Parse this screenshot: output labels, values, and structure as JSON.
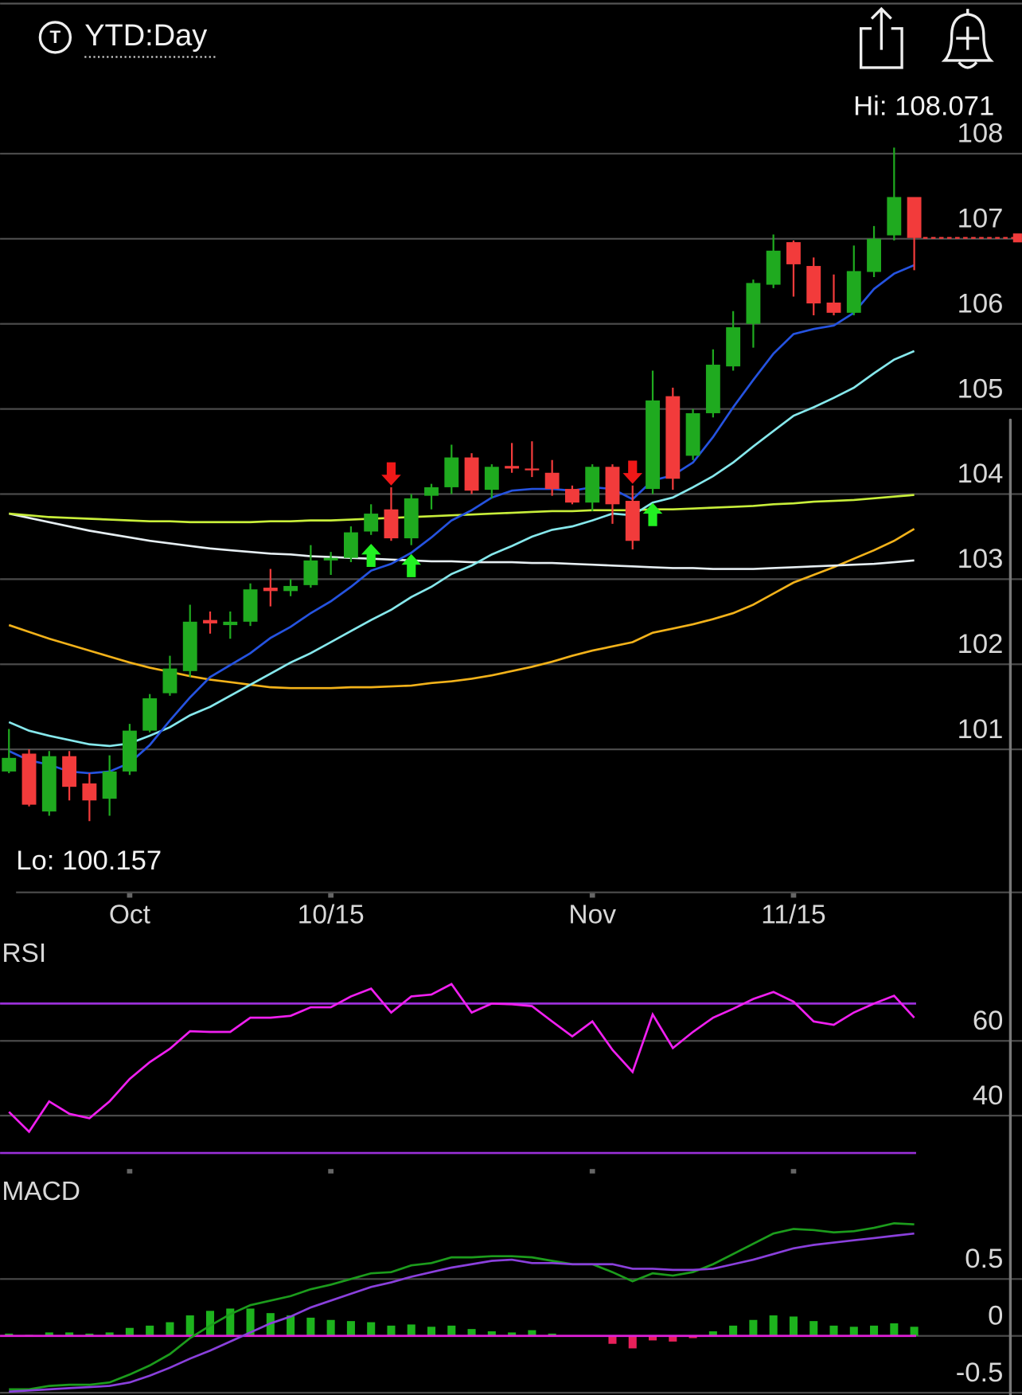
{
  "header": {
    "icon_letter": "T",
    "title": "YTD:Day"
  },
  "chart_data": [
    {
      "type": "candlestick",
      "categories": [
        null,
        null,
        null,
        null,
        null,
        null,
        "Oct",
        null,
        null,
        null,
        null,
        null,
        null,
        null,
        null,
        null,
        "10/15",
        null,
        null,
        null,
        null,
        null,
        null,
        null,
        null,
        null,
        null,
        null,
        null,
        "Nov",
        null,
        null,
        null,
        null,
        null,
        null,
        null,
        null,
        null,
        "11/15",
        null,
        null,
        null,
        null,
        null,
        null
      ],
      "open": [
        100.74,
        100.95,
        100.27,
        100.92,
        100.6,
        100.42,
        100.74,
        101.22,
        101.66,
        101.92,
        102.52,
        102.46,
        102.5,
        102.9,
        102.86,
        102.93,
        103.22,
        103.25,
        103.56,
        103.82,
        103.48,
        103.98,
        104.08,
        104.43,
        104.05,
        104.33,
        104.3,
        104.25,
        104.06,
        103.9,
        104.32,
        103.92,
        104.06,
        105.15,
        104.45,
        104.95,
        105.5,
        106.0,
        106.46,
        106.96,
        106.68,
        106.25,
        106.13,
        106.61,
        107.04,
        107.49
      ],
      "high": [
        101.24,
        101.0,
        100.98,
        100.98,
        100.72,
        100.93,
        101.3,
        101.65,
        102.1,
        102.7,
        102.62,
        102.62,
        102.95,
        103.12,
        103.0,
        103.4,
        103.32,
        103.62,
        103.88,
        104.08,
        104.0,
        104.12,
        104.58,
        104.48,
        104.35,
        104.6,
        104.62,
        104.4,
        104.1,
        104.35,
        104.35,
        104.1,
        105.45,
        105.25,
        105.0,
        105.7,
        106.15,
        106.52,
        107.05,
        106.98,
        106.78,
        106.58,
        106.92,
        107.15,
        108.071,
        107.49
      ],
      "low": [
        100.72,
        100.33,
        100.22,
        100.4,
        100.157,
        100.22,
        100.7,
        101.2,
        101.63,
        101.85,
        102.36,
        102.3,
        102.45,
        102.68,
        102.8,
        102.9,
        103.05,
        103.2,
        103.52,
        103.45,
        103.4,
        103.82,
        104.0,
        104.0,
        103.95,
        104.25,
        104.2,
        103.98,
        103.88,
        103.8,
        103.65,
        103.35,
        104.0,
        104.05,
        104.4,
        104.9,
        105.45,
        105.72,
        106.42,
        106.32,
        106.1,
        106.1,
        106.1,
        106.55,
        106.98,
        106.63
      ],
      "close": [
        100.9,
        100.35,
        100.92,
        100.56,
        100.4,
        100.74,
        101.22,
        101.6,
        101.95,
        102.5,
        102.48,
        102.5,
        102.88,
        102.86,
        102.92,
        103.22,
        103.25,
        103.55,
        103.77,
        103.48,
        103.95,
        104.08,
        104.43,
        104.04,
        104.32,
        104.3,
        104.28,
        104.06,
        103.9,
        104.32,
        103.88,
        103.45,
        105.1,
        104.18,
        104.95,
        105.52,
        105.96,
        106.48,
        106.86,
        106.7,
        106.24,
        106.13,
        106.62,
        107.0,
        107.49,
        107.01
      ],
      "up_color": "#1faa1f",
      "down_color": "#f23b3b",
      "series": [
        {
          "color": "#f2b21a",
          "values": [
            102.46,
            102.38,
            102.3,
            102.23,
            102.16,
            102.09,
            102.02,
            101.96,
            101.91,
            101.86,
            101.82,
            101.79,
            101.76,
            101.73,
            101.72,
            101.72,
            101.72,
            101.73,
            101.73,
            101.74,
            101.75,
            101.78,
            101.8,
            101.83,
            101.87,
            101.92,
            101.97,
            102.03,
            102.1,
            102.16,
            102.21,
            102.26,
            102.37,
            102.42,
            102.47,
            102.53,
            102.6,
            102.7,
            102.83,
            102.96,
            103.05,
            103.14,
            103.24,
            103.34,
            103.45,
            103.59
          ]
        },
        {
          "color": "#e6eef2",
          "values": [
            103.77,
            103.72,
            103.67,
            103.62,
            103.57,
            103.53,
            103.49,
            103.45,
            103.42,
            103.39,
            103.36,
            103.34,
            103.32,
            103.3,
            103.29,
            103.27,
            103.26,
            103.25,
            103.24,
            103.23,
            103.22,
            103.21,
            103.21,
            103.2,
            103.2,
            103.2,
            103.19,
            103.19,
            103.18,
            103.17,
            103.16,
            103.15,
            103.14,
            103.13,
            103.13,
            103.12,
            103.12,
            103.12,
            103.13,
            103.14,
            103.15,
            103.16,
            103.17,
            103.18,
            103.2,
            103.22
          ]
        },
        {
          "color": "#c8ee3a",
          "values": [
            103.77,
            103.75,
            103.73,
            103.72,
            103.71,
            103.7,
            103.69,
            103.68,
            103.68,
            103.67,
            103.67,
            103.67,
            103.67,
            103.68,
            103.68,
            103.69,
            103.69,
            103.7,
            103.71,
            103.72,
            103.73,
            103.74,
            103.75,
            103.76,
            103.77,
            103.78,
            103.79,
            103.8,
            103.8,
            103.81,
            103.81,
            103.81,
            103.82,
            103.82,
            103.83,
            103.84,
            103.85,
            103.86,
            103.88,
            103.89,
            103.91,
            103.92,
            103.93,
            103.95,
            103.97,
            103.99
          ]
        },
        {
          "color": "#86e8ec",
          "values": [
            101.32,
            101.22,
            101.16,
            101.11,
            101.06,
            101.04,
            101.07,
            101.16,
            101.26,
            101.4,
            101.5,
            101.63,
            101.76,
            101.89,
            102.02,
            102.13,
            102.26,
            102.39,
            102.52,
            102.64,
            102.79,
            102.91,
            103.06,
            103.16,
            103.29,
            103.39,
            103.5,
            103.58,
            103.62,
            103.69,
            103.77,
            103.75,
            103.9,
            103.96,
            104.08,
            104.21,
            104.37,
            104.56,
            104.74,
            104.92,
            105.02,
            105.13,
            105.25,
            105.42,
            105.58,
            105.68
          ]
        },
        {
          "color": "#2553e0",
          "values": [
            100.98,
            100.87,
            100.82,
            100.74,
            100.72,
            100.74,
            100.84,
            101.05,
            101.34,
            101.61,
            101.85,
            101.99,
            102.13,
            102.31,
            102.44,
            102.6,
            102.74,
            102.91,
            103.1,
            103.18,
            103.31,
            103.49,
            103.69,
            103.81,
            103.96,
            104.04,
            104.06,
            104.06,
            104.04,
            104.08,
            104.06,
            103.94,
            104.16,
            104.22,
            104.37,
            104.67,
            105.02,
            105.34,
            105.65,
            105.88,
            105.94,
            105.98,
            106.13,
            106.41,
            106.59,
            106.69
          ]
        }
      ],
      "up_signals": [
        18,
        20,
        32
      ],
      "down_signals": [
        19,
        31
      ],
      "hi_label": "Hi: 108.071",
      "lo_label": "Lo: 100.157",
      "ylim": [
        99.32,
        108.76
      ],
      "yticks": [
        101,
        102,
        103,
        104,
        105,
        106,
        107,
        108
      ],
      "grid": true
    },
    {
      "type": "line",
      "title": "RSI",
      "color": "#f01ff0",
      "values": [
        41.0,
        35.7,
        43.8,
        40.5,
        39.3,
        43.8,
        49.8,
        54.3,
        57.9,
        62.6,
        62.4,
        62.4,
        66.2,
        66.2,
        66.7,
        69.0,
        69.0,
        71.9,
        74.0,
        67.6,
        71.9,
        72.4,
        75.2,
        67.6,
        70.0,
        69.8,
        69.3,
        65.2,
        61.2,
        65.2,
        57.6,
        51.7,
        67.1,
        58.1,
        62.4,
        66.2,
        68.6,
        71.2,
        73.1,
        70.5,
        65.2,
        64.3,
        67.6,
        70.0,
        72.1,
        66.2
      ],
      "levels": [
        30,
        70
      ],
      "level_color": "#9a30d8",
      "ylim": [
        26.19,
        79.52
      ],
      "yticks": [
        40,
        60
      ],
      "grid": true
    },
    {
      "type": "macd",
      "title": "MACD",
      "series": [
        {
          "color": "#1c9c1c",
          "values": [
            -0.47,
            -0.47,
            -0.44,
            -0.43,
            -0.43,
            -0.41,
            -0.34,
            -0.26,
            -0.16,
            -0.02,
            0.09,
            0.19,
            0.27,
            0.31,
            0.35,
            0.41,
            0.45,
            0.5,
            0.55,
            0.56,
            0.62,
            0.64,
            0.69,
            0.69,
            0.7,
            0.7,
            0.69,
            0.66,
            0.63,
            0.63,
            0.56,
            0.48,
            0.55,
            0.53,
            0.56,
            0.63,
            0.72,
            0.81,
            0.9,
            0.94,
            0.93,
            0.91,
            0.92,
            0.95,
            0.99,
            0.98
          ]
        },
        {
          "color": "#8a40dc",
          "values": [
            -0.49,
            -0.48,
            -0.47,
            -0.46,
            -0.45,
            -0.44,
            -0.41,
            -0.35,
            -0.28,
            -0.2,
            -0.13,
            -0.05,
            0.03,
            0.11,
            0.17,
            0.25,
            0.31,
            0.37,
            0.43,
            0.47,
            0.52,
            0.56,
            0.6,
            0.63,
            0.66,
            0.67,
            0.64,
            0.64,
            0.63,
            0.63,
            0.63,
            0.59,
            0.59,
            0.58,
            0.58,
            0.59,
            0.63,
            0.67,
            0.72,
            0.77,
            0.8,
            0.82,
            0.84,
            0.86,
            0.88,
            0.9
          ]
        }
      ],
      "histogram": [
        0.02,
        0.01,
        0.03,
        0.03,
        0.02,
        0.03,
        0.07,
        0.09,
        0.12,
        0.18,
        0.22,
        0.24,
        0.24,
        0.2,
        0.18,
        0.16,
        0.14,
        0.13,
        0.12,
        0.09,
        0.1,
        0.08,
        0.09,
        0.06,
        0.04,
        0.03,
        0.05,
        0.02,
        0.0,
        0.0,
        -0.07,
        -0.11,
        -0.04,
        -0.05,
        -0.02,
        0.04,
        0.09,
        0.14,
        0.18,
        0.17,
        0.13,
        0.09,
        0.08,
        0.09,
        0.11,
        0.08
      ],
      "hist_up_color": "#1db31d",
      "hist_down_color": "#e8205a",
      "zero_color": "#e020d8",
      "ylim": [
        -0.52,
        1.42
      ],
      "yticks": [
        -0.5,
        0,
        0.5
      ],
      "grid": true
    }
  ]
}
